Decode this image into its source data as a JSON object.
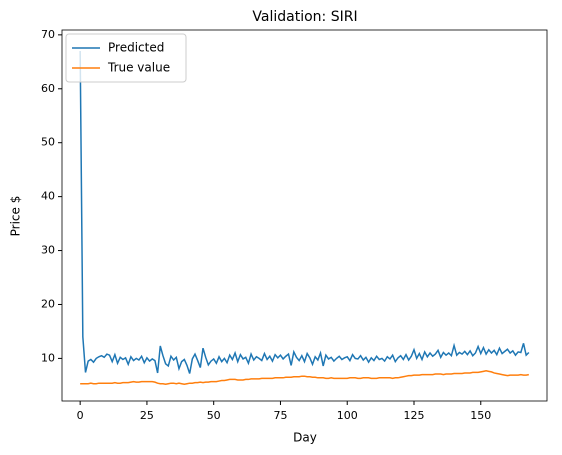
{
  "chart_data": {
    "type": "line",
    "title": "Validation: SIRI",
    "xlabel": "Day",
    "ylabel": "Price $",
    "x": [
      0,
      1,
      2,
      3,
      4,
      5,
      6,
      7,
      8,
      9,
      10,
      11,
      12,
      13,
      14,
      15,
      16,
      17,
      18,
      19,
      20,
      21,
      22,
      23,
      24,
      25,
      26,
      27,
      28,
      29,
      30,
      31,
      32,
      33,
      34,
      35,
      36,
      37,
      38,
      39,
      40,
      41,
      42,
      43,
      44,
      45,
      46,
      47,
      48,
      49,
      50,
      51,
      52,
      53,
      54,
      55,
      56,
      57,
      58,
      59,
      60,
      61,
      62,
      63,
      64,
      65,
      66,
      67,
      68,
      69,
      70,
      71,
      72,
      73,
      74,
      75,
      76,
      77,
      78,
      79,
      80,
      81,
      82,
      83,
      84,
      85,
      86,
      87,
      88,
      89,
      90,
      91,
      92,
      93,
      94,
      95,
      96,
      97,
      98,
      99,
      100,
      101,
      102,
      103,
      104,
      105,
      106,
      107,
      108,
      109,
      110,
      111,
      112,
      113,
      114,
      115,
      116,
      117,
      118,
      119,
      120,
      121,
      122,
      123,
      124,
      125,
      126,
      127,
      128,
      129,
      130,
      131,
      132,
      133,
      134,
      135,
      136,
      137,
      138,
      139,
      140,
      141,
      142,
      143,
      144,
      145,
      146,
      147,
      148,
      149,
      150,
      151,
      152,
      153,
      154,
      155,
      156,
      157,
      158,
      159,
      160,
      161,
      162,
      163,
      164,
      165,
      166,
      167,
      168
    ],
    "series": [
      {
        "name": "Predicted",
        "color": "#1f77b4",
        "values": [
          67,
          14,
          7.4,
          9.5,
          9.8,
          9.3,
          10.0,
          10.3,
          10.5,
          10.2,
          10.8,
          10.6,
          9.4,
          10.7,
          9.1,
          10.2,
          9.8,
          10.1,
          8.9,
          10.3,
          9.6,
          10.0,
          9.7,
          10.4,
          9.2,
          10.1,
          9.5,
          9.9,
          9.6,
          7.3,
          12.3,
          10.5,
          9.0,
          8.6,
          10.4,
          9.7,
          10.2,
          8.1,
          9.4,
          9.8,
          8.7,
          7.2,
          9.9,
          10.8,
          9.6,
          8.3,
          11.9,
          10.2,
          8.8,
          9.5,
          9.9,
          9.1,
          10.3,
          9.4,
          10.0,
          9.2,
          10.6,
          9.8,
          11.0,
          9.4,
          10.7,
          9.9,
          10.2,
          9.1,
          10.8,
          9.7,
          10.3,
          10.0,
          9.6,
          10.9,
          9.8,
          10.4,
          9.5,
          10.7,
          10.1,
          10.6,
          9.9,
          10.4,
          10.8,
          8.7,
          11.2,
          10.2,
          9.6,
          10.5,
          9.4,
          10.9,
          10.1,
          8.9,
          10.3,
          9.7,
          11.0,
          8.6,
          10.6,
          9.9,
          10.2,
          9.5,
          10.0,
          10.4,
          9.8,
          10.1,
          10.3,
          9.6,
          10.7,
          10.0,
          9.9,
          10.5,
          9.7,
          10.2,
          9.3,
          10.1,
          9.6,
          10.4,
          9.8,
          10.0,
          9.5,
          10.3,
          9.9,
          10.6,
          9.4,
          10.1,
          10.5,
          9.8,
          10.7,
          9.7,
          10.4,
          11.6,
          10.0,
          10.9,
          9.8,
          11.2,
          10.3,
          11.0,
          10.4,
          10.8,
          11.5,
          10.2,
          11.1,
          10.6,
          11.0,
          10.5,
          12.4,
          10.6,
          11.1,
          10.8,
          11.3,
          10.7,
          11.4,
          10.5,
          11.0,
          12.2,
          10.9,
          12.0,
          10.8,
          11.6,
          11.0,
          11.5,
          10.7,
          11.9,
          10.9,
          11.3,
          11.7,
          11.0,
          11.4,
          10.6,
          11.2,
          11.1,
          12.8,
          10.6,
          11.1
        ]
      },
      {
        "name": "True value",
        "color": "#ff7f0e",
        "values": [
          5.3,
          5.3,
          5.3,
          5.3,
          5.4,
          5.3,
          5.3,
          5.4,
          5.4,
          5.4,
          5.4,
          5.4,
          5.4,
          5.5,
          5.4,
          5.4,
          5.5,
          5.5,
          5.5,
          5.6,
          5.7,
          5.6,
          5.6,
          5.7,
          5.7,
          5.7,
          5.7,
          5.7,
          5.6,
          5.4,
          5.3,
          5.3,
          5.2,
          5.3,
          5.4,
          5.4,
          5.3,
          5.4,
          5.3,
          5.2,
          5.3,
          5.4,
          5.4,
          5.5,
          5.5,
          5.6,
          5.5,
          5.6,
          5.6,
          5.7,
          5.7,
          5.7,
          5.8,
          5.9,
          5.9,
          6.0,
          6.1,
          6.1,
          6.1,
          6.0,
          6.0,
          6.0,
          6.1,
          6.1,
          6.2,
          6.2,
          6.2,
          6.2,
          6.3,
          6.3,
          6.3,
          6.3,
          6.3,
          6.4,
          6.4,
          6.4,
          6.4,
          6.5,
          6.5,
          6.5,
          6.6,
          6.6,
          6.6,
          6.7,
          6.7,
          6.6,
          6.6,
          6.5,
          6.5,
          6.4,
          6.4,
          6.4,
          6.3,
          6.3,
          6.4,
          6.3,
          6.3,
          6.3,
          6.3,
          6.3,
          6.3,
          6.4,
          6.4,
          6.4,
          6.3,
          6.3,
          6.4,
          6.4,
          6.4,
          6.3,
          6.3,
          6.3,
          6.4,
          6.4,
          6.4,
          6.4,
          6.4,
          6.3,
          6.4,
          6.4,
          6.5,
          6.6,
          6.7,
          6.8,
          6.8,
          6.9,
          6.9,
          6.9,
          7.0,
          7.0,
          7.0,
          7.0,
          7.0,
          7.1,
          7.1,
          7.1,
          7.0,
          7.1,
          7.1,
          7.1,
          7.2,
          7.2,
          7.2,
          7.2,
          7.3,
          7.3,
          7.3,
          7.4,
          7.4,
          7.4,
          7.5,
          7.6,
          7.7,
          7.6,
          7.5,
          7.3,
          7.2,
          7.1,
          7.0,
          6.9,
          6.8,
          6.9,
          6.9,
          6.9,
          6.9,
          7.0,
          6.9,
          6.9,
          7.0
        ]
      }
    ],
    "xlim": [
      -6.8,
      174.8
    ],
    "xticks": [
      0,
      25,
      50,
      75,
      100,
      125,
      150
    ],
    "ylim": [
      2.1,
      70.9
    ],
    "yticks": [
      10,
      20,
      30,
      40,
      50,
      60,
      70
    ],
    "legend": "upper left",
    "grid": false
  }
}
